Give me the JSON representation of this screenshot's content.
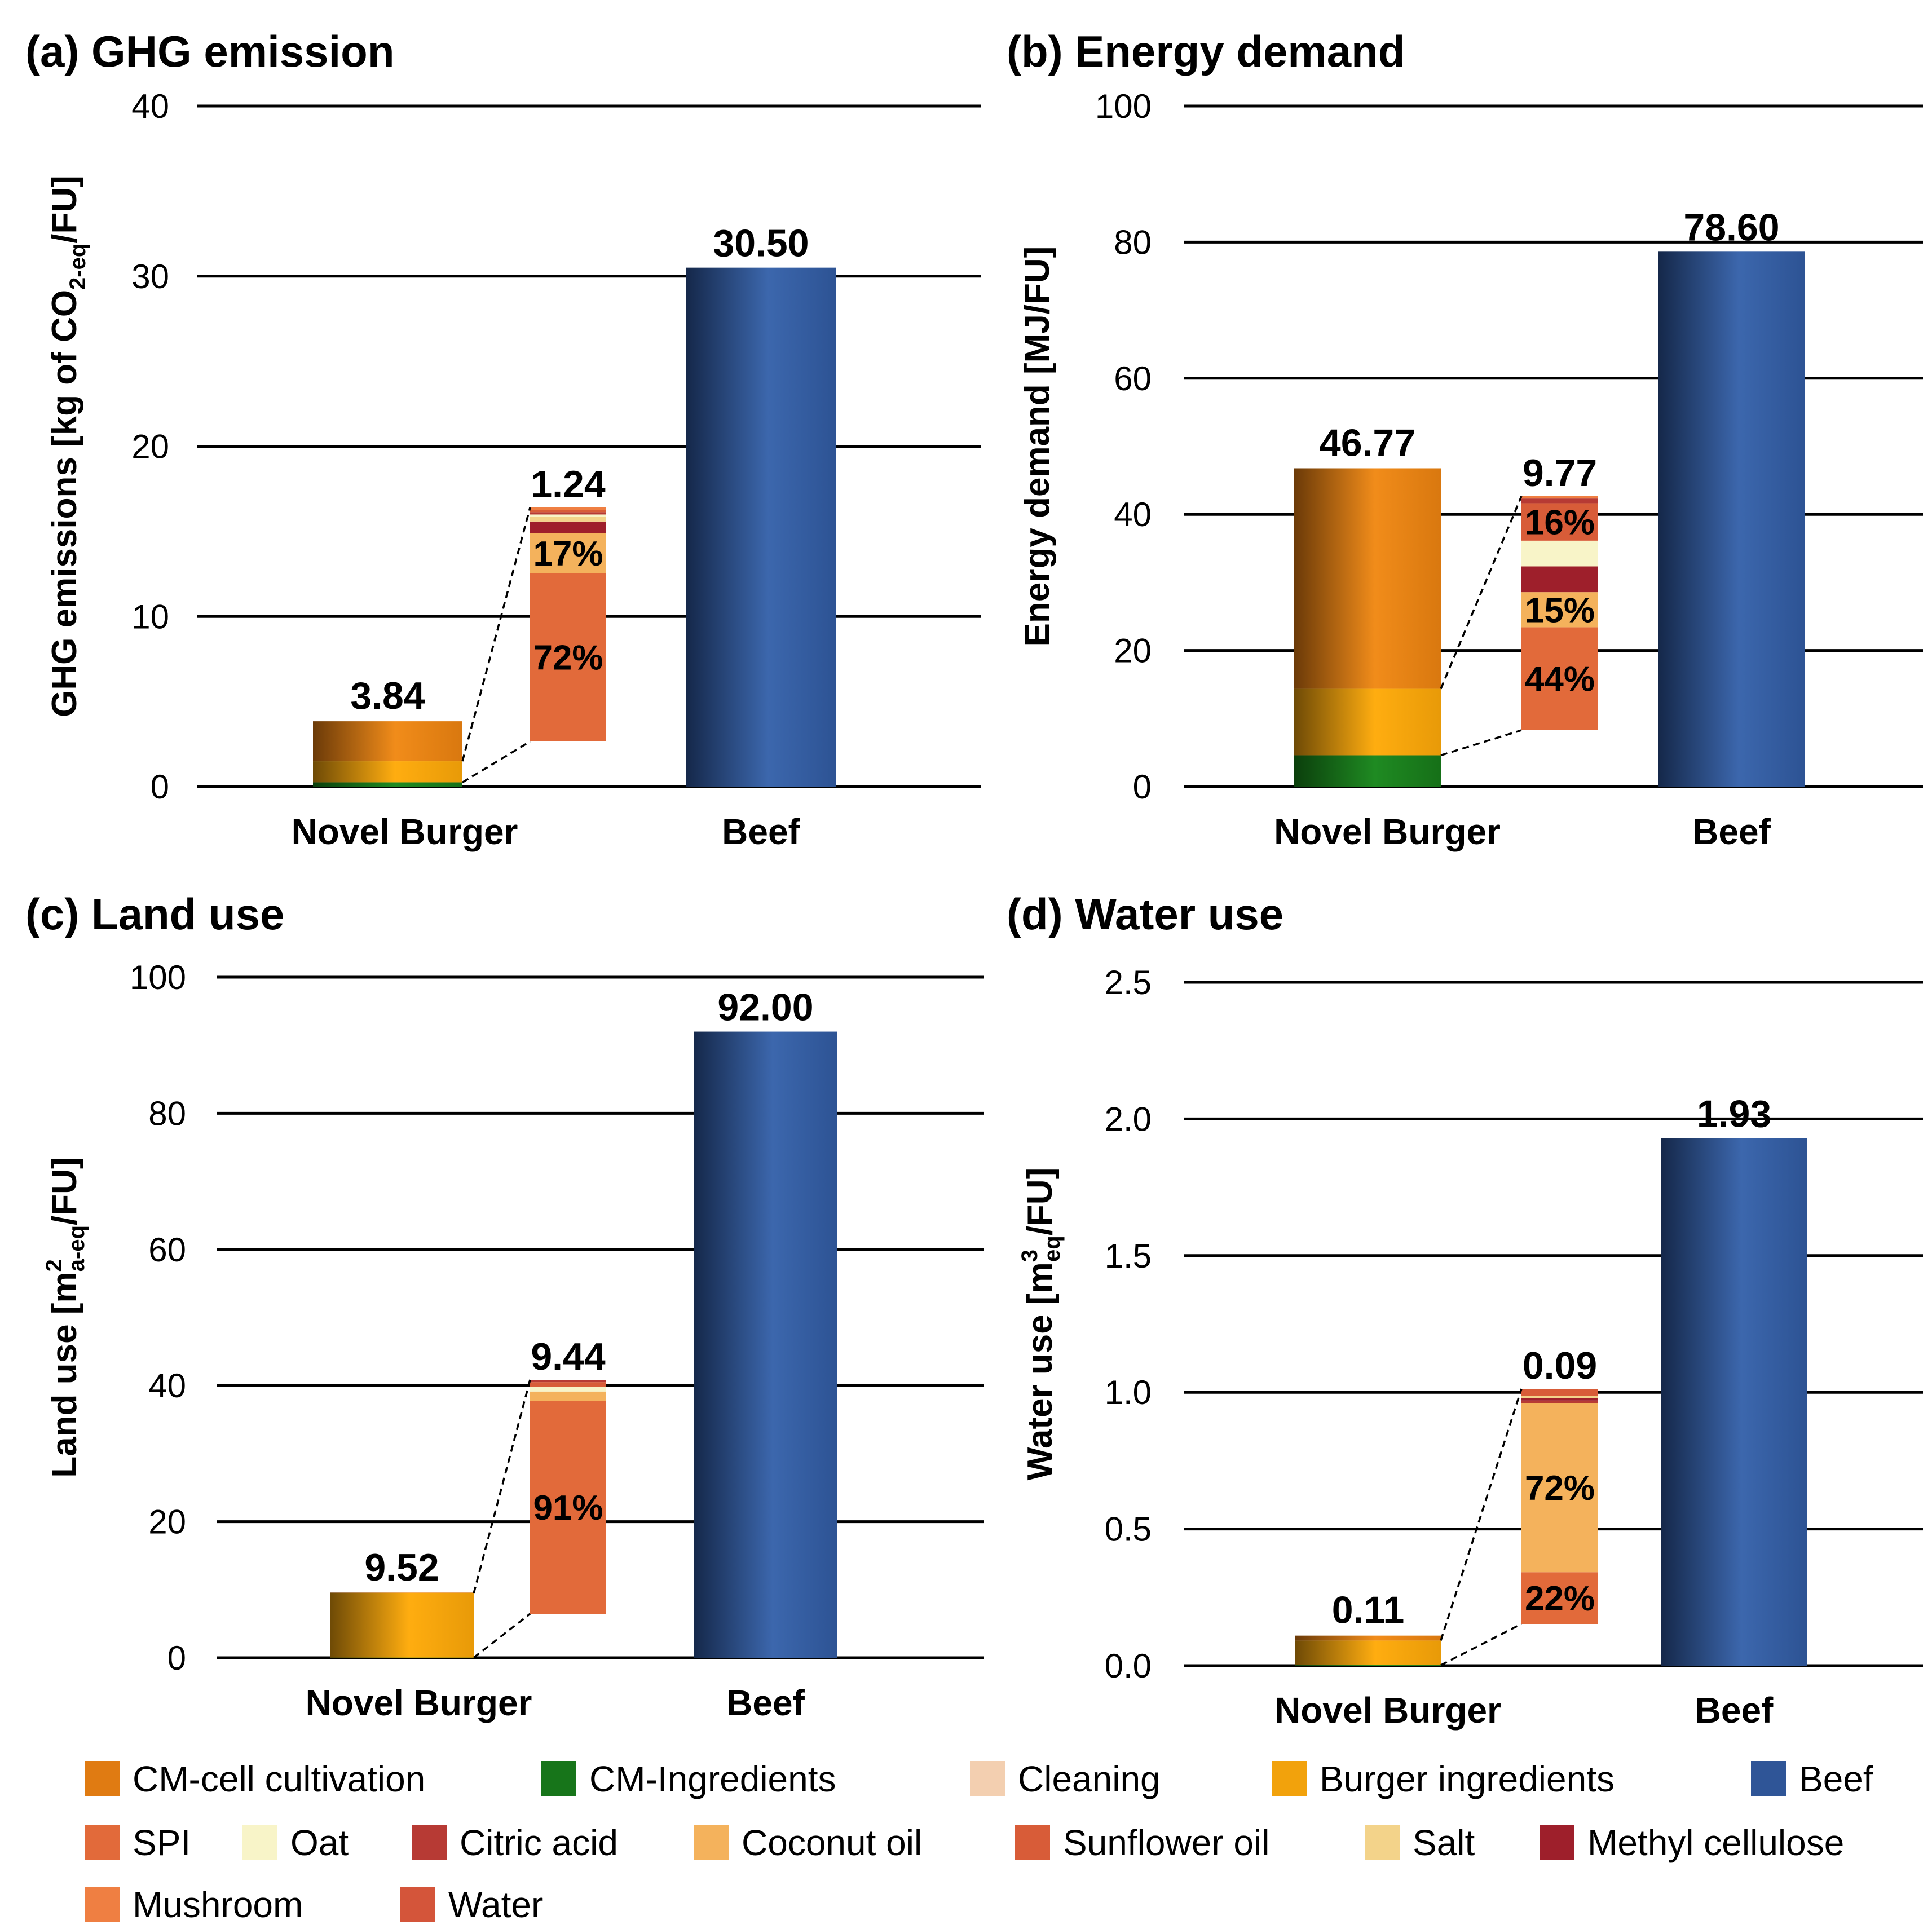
{
  "colors": {
    "CM-cell cultivation": "#e07b12",
    "CM-Ingredients": "#17751a",
    "Cleaning": "#f3cfb0",
    "Burger ingredients": "#f2a20c",
    "Beef": "#2f5597",
    "SPI": "#e26a3a",
    "Oat": "#f8f4c8",
    "Citric acid": "#b73a34",
    "Coconut oil": "#f4b25c",
    "Sunflower oil": "#d85c38",
    "Salt": "#f3d38a",
    "Methyl cellulose": "#9e1f2b",
    "Mushroom": "#ef7f42",
    "Water": "#d4553a"
  },
  "legend": {
    "items": [
      "CM-cell cultivation",
      "CM-Ingredients",
      "Cleaning",
      "Burger ingredients",
      "Beef",
      "SPI",
      "Oat",
      "Citric acid",
      "Coconut oil",
      "Sunflower oil",
      "Salt",
      "Methyl cellulose",
      "Mushroom",
      "Water"
    ]
  },
  "chart_data": [
    {
      "type": "bar",
      "title": "(a) GHG emission",
      "ylabel": "GHG emissions [kg of CO2-eq/FU]",
      "ylabel_parts": [
        "GHG emissions [kg of CO",
        "2-eq",
        "/FU]"
      ],
      "ylim": [
        0,
        40
      ],
      "yticks": [
        "0",
        "10",
        "20",
        "30",
        "40"
      ],
      "categories": [
        "Novel Burger",
        "Beef"
      ],
      "novel_burger": {
        "total": 3.84,
        "label": "3.84",
        "stack": [
          {
            "name": "CM-Ingredients",
            "value": 0.25
          },
          {
            "name": "Burger ingredients",
            "value": 1.24
          },
          {
            "name": "CM-cell cultivation",
            "value": 2.35
          }
        ]
      },
      "beef": {
        "total": 30.5,
        "label": "30.50"
      },
      "breakdown": {
        "total": 1.24,
        "label": "1.24",
        "stack": [
          {
            "name": "SPI",
            "share": 72,
            "label": "72%"
          },
          {
            "name": "Coconut oil",
            "share": 17,
            "label": "17%"
          },
          {
            "name": "Methyl cellulose",
            "share": 5
          },
          {
            "name": "Salt",
            "share": 2
          },
          {
            "name": "Oat",
            "share": 1
          },
          {
            "name": "Citric acid",
            "share": 1
          },
          {
            "name": "Sunflower oil",
            "share": 1
          },
          {
            "name": "Mushroom",
            "share": 1
          }
        ]
      }
    },
    {
      "type": "bar",
      "title": "(b) Energy demand",
      "ylabel": "Energy demand [MJ/FU]",
      "ylabel_parts": [
        "Energy demand [MJ/FU]"
      ],
      "ylim": [
        0,
        100
      ],
      "yticks": [
        "0",
        "20",
        "40",
        "60",
        "80",
        "100"
      ],
      "categories": [
        "Novel Burger",
        "Beef"
      ],
      "novel_burger": {
        "total": 46.77,
        "label": "46.77",
        "stack": [
          {
            "name": "CM-Ingredients",
            "value": 4.6
          },
          {
            "name": "Burger ingredients",
            "value": 9.77
          },
          {
            "name": "CM-cell cultivation",
            "value": 32.4
          }
        ]
      },
      "beef": {
        "total": 78.6,
        "label": "78.60"
      },
      "breakdown": {
        "total": 9.77,
        "label": "9.77",
        "stack": [
          {
            "name": "SPI",
            "share": 44,
            "label": "44%"
          },
          {
            "name": "Coconut oil",
            "share": 15,
            "label": "15%"
          },
          {
            "name": "Methyl cellulose",
            "share": 11
          },
          {
            "name": "Oat",
            "share": 11
          },
          {
            "name": "Sunflower oil",
            "share": 16,
            "label": "16%"
          },
          {
            "name": "Citric acid",
            "share": 2
          },
          {
            "name": "Mushroom",
            "share": 1
          }
        ]
      }
    },
    {
      "type": "bar",
      "title": "(c) Land use",
      "ylabel": "Land use [m2a-eq/FU]",
      "ylabel_parts": [
        "Land use [m",
        "2",
        "a-eq",
        "/FU]"
      ],
      "ylim": [
        0,
        100
      ],
      "yticks": [
        "0",
        "20",
        "40",
        "60",
        "80",
        "100"
      ],
      "categories": [
        "Novel Burger",
        "Beef"
      ],
      "novel_burger": {
        "total": 9.52,
        "label": "9.52",
        "stack": [
          {
            "name": "CM-Ingredients",
            "value": 0.02
          },
          {
            "name": "Burger ingredients",
            "value": 9.44
          },
          {
            "name": "CM-cell cultivation",
            "value": 0.06
          }
        ]
      },
      "beef": {
        "total": 92.0,
        "label": "92.00"
      },
      "breakdown": {
        "total": 9.44,
        "label": "9.44",
        "stack": [
          {
            "name": "SPI",
            "share": 91,
            "label": "91%"
          },
          {
            "name": "Coconut oil",
            "share": 4
          },
          {
            "name": "Oat",
            "share": 2
          },
          {
            "name": "Sunflower oil",
            "share": 2
          },
          {
            "name": "Citric acid",
            "share": 1
          }
        ]
      }
    },
    {
      "type": "bar",
      "title": "(d) Water use",
      "ylabel": "Water use [m3eq/FU]",
      "ylabel_parts": [
        "Water use [m",
        "3",
        "eq",
        "/FU]"
      ],
      "ylim": [
        0,
        2.5
      ],
      "yticks": [
        "0.0",
        "0.5",
        "1.0",
        "1.5",
        "2.0",
        "2.5"
      ],
      "categories": [
        "Novel Burger",
        "Beef"
      ],
      "novel_burger": {
        "total": 0.11,
        "label": "0.11",
        "stack": [
          {
            "name": "CM-Ingredients",
            "value": 0.002
          },
          {
            "name": "Burger ingredients",
            "value": 0.09
          },
          {
            "name": "CM-cell cultivation",
            "value": 0.018
          }
        ]
      },
      "beef": {
        "total": 1.93,
        "label": "1.93"
      },
      "breakdown": {
        "total": 0.09,
        "label": "0.09",
        "stack": [
          {
            "name": "SPI",
            "share": 22,
            "label": "22%"
          },
          {
            "name": "Coconut oil",
            "share": 72,
            "label": "72%"
          },
          {
            "name": "Citric acid",
            "share": 1
          },
          {
            "name": "Methyl cellulose",
            "share": 1
          },
          {
            "name": "Salt",
            "share": 1
          },
          {
            "name": "Sunflower oil",
            "share": 3
          }
        ]
      }
    }
  ]
}
